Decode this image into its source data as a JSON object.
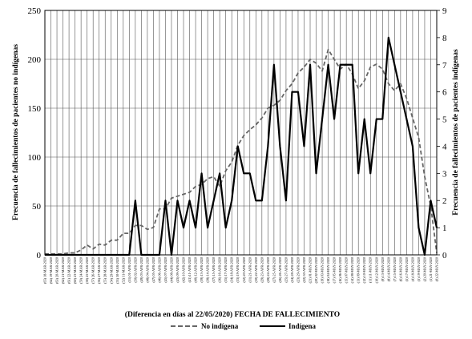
{
  "chart_data": {
    "type": "line",
    "xlabel": "(Diferencia en días al 22/05/2020) FECHA DE FALLECIMIENTO",
    "ylabel_left": "Frecuencia de fallecimientos de pacientes no indígenas",
    "ylabel_right": "Frecuencia de fallecimientos de pacientes indígenas",
    "ylim_left": [
      0,
      250
    ],
    "ylim_right": [
      0,
      9
    ],
    "yticks_left": [
      0,
      50,
      100,
      150,
      200,
      250
    ],
    "yticks_right": [
      0,
      1,
      2,
      3,
      4,
      5,
      6,
      7,
      8,
      9
    ],
    "grid": true,
    "legend_position": "bottom",
    "x": [
      "(65) 18-MAR-2020",
      "(64) 19-MAR-2020",
      "(63) 20-MAR-2020",
      "(62) 21-MAR-2020",
      "(61) 22-MAR-2020",
      "(60) 23-MAR-2020",
      "(59) 24-MAR-2020",
      "(58) 25-MAR-2020",
      "(57) 26-MAR-2020",
      "(56) 27-MAR-2020",
      "(55) 28-MAR-2020",
      "(54) 29-MAR-2020",
      "(53) 30-MAR-2020",
      "(52) 31-MAR-2020",
      "(51) 01-APR-2020",
      "(50) 02-APR-2020",
      "(49) 03-APR-2020",
      "(48) 04-APR-2020",
      "(47) 05-APR-2020",
      "(46) 06-APR-2020",
      "(45) 07-APR-2020",
      "(44) 08-APR-2020",
      "(43) 09-APR-2020",
      "(42) 10-APR-2020",
      "(41) 11-APR-2020",
      "(40) 12-APR-2020",
      "(39) 13-APR-2020",
      "(38) 14-APR-2020",
      "(37) 15-APR-2020",
      "(36) 16-APR-2020",
      "(35) 17-APR-2020",
      "(34) 18-APR-2020",
      "(33) 19-APR-2020",
      "(32) 20-APR-2020",
      "(31) 21-APR-2020",
      "(30) 22-APR-2020",
      "(29) 23-APR-2020",
      "(28) 24-APR-2020",
      "(27) 25-APR-2020",
      "(26) 26-APR-2020",
      "(25) 27-APR-2020",
      "(24) 28-APR-2020",
      "(23) 29-APR-2020",
      "(22) 30-APR-2020",
      "(21) 01-MAY-2020",
      "(20) 02-MAY-2020",
      "(19) 03-MAY-2020",
      "(18) 04-MAY-2020",
      "(17) 05-MAY-2020",
      "(16) 06-MAY-2020",
      "(15) 07-MAY-2020",
      "(14) 08-MAY-2020",
      "(13) 09-MAY-2020",
      "(12) 10-MAY-2020",
      "(11) 11-MAY-2020",
      "(10) 12-MAY-2020",
      "(9) 13-MAY-2020",
      "(8) 14-MAY-2020",
      "(7) 15-MAY-2020",
      "(6) 16-MAY-2020",
      "(5) 17-MAY-2020",
      "(4) 18-MAY-2020",
      "(3) 19-MAY-2020",
      "(2) 20-MAY-2020",
      "(1) 21-MAY-2020",
      "(0) 22-MAY-2020"
    ],
    "series": [
      {
        "name": "No indígena",
        "axis": "left",
        "style": "dashed",
        "color": "#666666",
        "values": [
          1,
          1,
          1,
          1,
          2,
          2,
          5,
          10,
          6,
          11,
          10,
          15,
          15,
          22,
          22,
          30,
          30,
          26,
          28,
          47,
          47,
          58,
          60,
          62,
          64,
          70,
          72,
          78,
          80,
          70,
          86,
          95,
          112,
          122,
          128,
          133,
          140,
          150,
          153,
          158,
          168,
          175,
          186,
          192,
          200,
          196,
          188,
          210,
          200,
          190,
          195,
          185,
          170,
          178,
          192,
          195,
          190,
          175,
          168,
          175,
          160,
          140,
          120,
          80,
          50,
          2
        ]
      },
      {
        "name": "Indígena",
        "axis": "right",
        "style": "solid",
        "color": "#000000",
        "values": [
          0,
          0,
          0,
          0,
          0,
          0,
          0,
          0,
          0,
          0,
          0,
          0,
          0,
          0,
          0,
          2,
          0,
          0,
          0,
          0,
          2,
          0,
          2,
          1,
          2,
          1,
          3,
          1,
          2,
          3,
          1,
          2,
          4,
          3,
          3,
          2,
          2,
          4,
          7,
          4,
          2,
          6,
          6,
          4,
          7,
          3,
          5,
          7,
          5,
          7,
          7,
          7,
          3,
          5,
          3,
          5,
          5,
          8,
          7,
          6,
          5,
          4,
          1,
          0,
          2,
          1
        ]
      }
    ]
  }
}
